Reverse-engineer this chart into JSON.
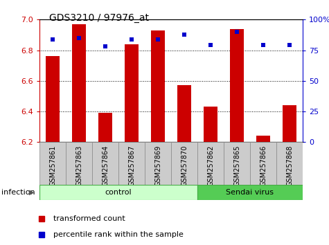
{
  "title": "GDS3210 / 97976_at",
  "samples": [
    "GSM257861",
    "GSM257863",
    "GSM257864",
    "GSM257867",
    "GSM257869",
    "GSM257870",
    "GSM257862",
    "GSM257865",
    "GSM257866",
    "GSM257868"
  ],
  "bar_values": [
    6.76,
    6.97,
    6.39,
    6.84,
    6.93,
    6.57,
    6.43,
    6.94,
    6.24,
    6.44
  ],
  "percentile_values": [
    84,
    85,
    78,
    84,
    84,
    88,
    79,
    90,
    79,
    79
  ],
  "bar_color": "#cc0000",
  "percentile_color": "#0000cc",
  "ylim_left": [
    6.2,
    7.0
  ],
  "ylim_right": [
    0,
    100
  ],
  "yticks_left": [
    6.2,
    6.4,
    6.6,
    6.8,
    7.0
  ],
  "yticks_right": [
    0,
    25,
    50,
    75,
    100
  ],
  "groups": [
    {
      "label": "control",
      "start": 0,
      "end": 6,
      "color": "#ccffcc",
      "edge_color": "#44aa44"
    },
    {
      "label": "Sendai virus",
      "start": 6,
      "end": 10,
      "color": "#55cc55",
      "edge_color": "#44aa44"
    }
  ],
  "group_label_left": "infection",
  "legend_items": [
    {
      "label": "transformed count",
      "color": "#cc0000"
    },
    {
      "label": "percentile rank within the sample",
      "color": "#0000cc"
    }
  ],
  "background_color": "#ffffff",
  "tick_label_color_left": "#cc0000",
  "tick_label_color_right": "#0000cc",
  "sample_box_color": "#cccccc",
  "sample_box_edge": "#888888"
}
